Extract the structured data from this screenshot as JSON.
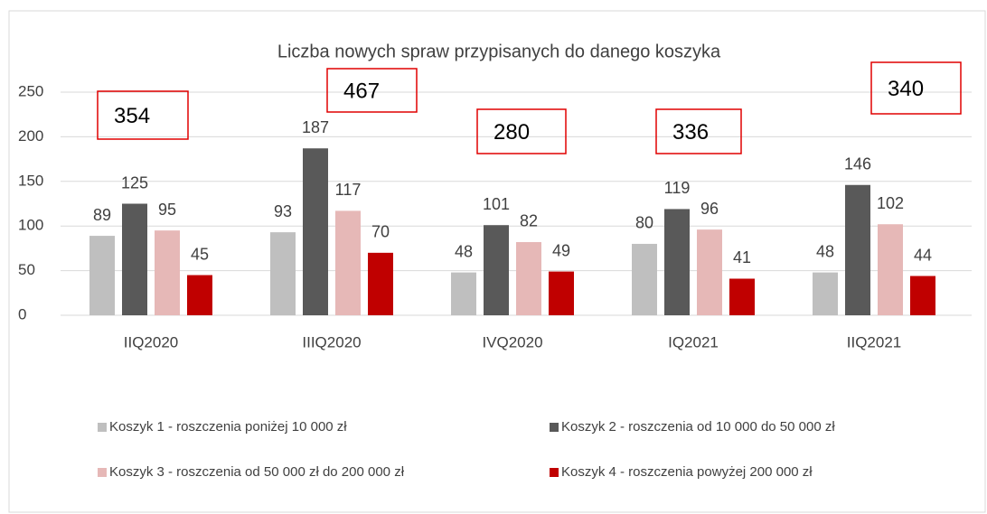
{
  "chart_data": {
    "type": "bar",
    "title": "Liczba nowych spraw przypisanych do danego koszyka",
    "categories": [
      "IIQ2020",
      "IIIQ2020",
      "IVQ2020",
      "IQ2021",
      "IIQ2021"
    ],
    "series": [
      {
        "name": "Koszyk 1 - roszczenia poniżej 10 000 zł",
        "color": "#bfbfbf",
        "values": [
          89,
          93,
          48,
          80,
          48
        ]
      },
      {
        "name": "Koszyk 2 - roszczenia od 10 000 do 50 000 zł",
        "color": "#595959",
        "values": [
          125,
          187,
          101,
          119,
          146
        ]
      },
      {
        "name": "Koszyk 3 - roszczenia od 50 000 zł do 200 000 zł",
        "color": "#e6b8b7",
        "values": [
          95,
          117,
          82,
          96,
          102
        ]
      },
      {
        "name": "Koszyk 4 - roszczenia powyżej 200 000 zł",
        "color": "#c00000",
        "values": [
          45,
          70,
          49,
          41,
          44
        ]
      }
    ],
    "annotations": [
      354,
      467,
      280,
      336,
      340
    ],
    "ylim": [
      0,
      250
    ],
    "yticks": [
      0,
      50,
      100,
      150,
      200,
      250
    ],
    "grid": true
  }
}
